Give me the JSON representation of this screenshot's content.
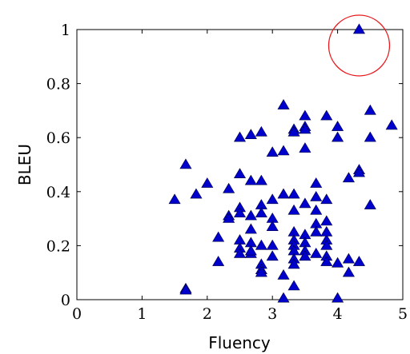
{
  "chart_data": {
    "type": "scatter",
    "xlabel": "Fluency",
    "ylabel": "BLEU",
    "xlim": [
      0,
      5
    ],
    "ylim": [
      0,
      1
    ],
    "x_ticks": [
      "0",
      "1",
      "2",
      "3",
      "4",
      "5"
    ],
    "y_ticks": [
      "0",
      "0.2",
      "0.4",
      "0.6",
      "0.8",
      "1"
    ],
    "marker": "triangle",
    "marker_color": "#0000cc",
    "highlight_color": "#e8191c",
    "highlight_point": [
      4.33,
      1.0
    ],
    "grid": false,
    "points": [
      [
        4.33,
        1.0
      ],
      [
        3.17,
        0.72
      ],
      [
        4.5,
        0.7
      ],
      [
        3.5,
        0.68
      ],
      [
        3.83,
        0.68
      ],
      [
        3.5,
        0.64
      ],
      [
        4.0,
        0.64
      ],
      [
        4.83,
        0.645
      ],
      [
        3.5,
        0.63
      ],
      [
        3.33,
        0.63
      ],
      [
        2.83,
        0.62
      ],
      [
        2.5,
        0.6
      ],
      [
        2.67,
        0.61
      ],
      [
        3.33,
        0.62
      ],
      [
        4.0,
        0.6
      ],
      [
        4.5,
        0.6
      ],
      [
        3.5,
        0.56
      ],
      [
        3.17,
        0.55
      ],
      [
        3.0,
        0.545
      ],
      [
        1.67,
        0.5
      ],
      [
        4.33,
        0.48
      ],
      [
        4.33,
        0.47
      ],
      [
        2.5,
        0.465
      ],
      [
        4.17,
        0.45
      ],
      [
        2.67,
        0.44
      ],
      [
        2.83,
        0.44
      ],
      [
        2.0,
        0.43
      ],
      [
        3.67,
        0.43
      ],
      [
        2.33,
        0.41
      ],
      [
        3.17,
        0.39
      ],
      [
        3.33,
        0.39
      ],
      [
        1.83,
        0.39
      ],
      [
        1.5,
        0.37
      ],
      [
        3.0,
        0.37
      ],
      [
        3.67,
        0.38
      ],
      [
        3.83,
        0.37
      ],
      [
        3.5,
        0.355
      ],
      [
        4.5,
        0.35
      ],
      [
        2.83,
        0.35
      ],
      [
        2.5,
        0.34
      ],
      [
        3.33,
        0.33
      ],
      [
        3.67,
        0.33
      ],
      [
        2.83,
        0.32
      ],
      [
        2.33,
        0.31
      ],
      [
        2.67,
        0.31
      ],
      [
        2.33,
        0.3
      ],
      [
        2.5,
        0.32
      ],
      [
        3.0,
        0.3
      ],
      [
        3.0,
        0.27
      ],
      [
        3.67,
        0.28
      ],
      [
        3.83,
        0.29
      ],
      [
        3.33,
        0.25
      ],
      [
        3.5,
        0.24
      ],
      [
        3.67,
        0.25
      ],
      [
        2.67,
        0.26
      ],
      [
        2.17,
        0.23
      ],
      [
        2.5,
        0.22
      ],
      [
        2.67,
        0.21
      ],
      [
        3.33,
        0.22
      ],
      [
        3.5,
        0.21
      ],
      [
        3.83,
        0.22
      ],
      [
        2.83,
        0.2
      ],
      [
        3.0,
        0.2
      ],
      [
        3.83,
        0.25
      ],
      [
        3.83,
        0.2
      ],
      [
        3.33,
        0.2
      ],
      [
        2.5,
        0.19
      ],
      [
        2.67,
        0.17
      ],
      [
        3.5,
        0.18
      ],
      [
        3.67,
        0.17
      ],
      [
        3.0,
        0.16
      ],
      [
        2.5,
        0.17
      ],
      [
        2.67,
        0.18
      ],
      [
        3.33,
        0.18
      ],
      [
        3.5,
        0.16
      ],
      [
        3.83,
        0.16
      ],
      [
        3.33,
        0.15
      ],
      [
        2.17,
        0.14
      ],
      [
        2.83,
        0.13
      ],
      [
        3.33,
        0.13
      ],
      [
        3.83,
        0.14
      ],
      [
        4.0,
        0.135
      ],
      [
        4.17,
        0.15
      ],
      [
        4.33,
        0.14
      ],
      [
        2.83,
        0.11
      ],
      [
        2.83,
        0.1
      ],
      [
        3.17,
        0.09
      ],
      [
        4.17,
        0.1
      ],
      [
        3.33,
        0.05
      ],
      [
        1.67,
        0.04
      ],
      [
        1.67,
        0.035
      ],
      [
        3.17,
        0.005
      ],
      [
        4.0,
        0.005
      ]
    ]
  }
}
